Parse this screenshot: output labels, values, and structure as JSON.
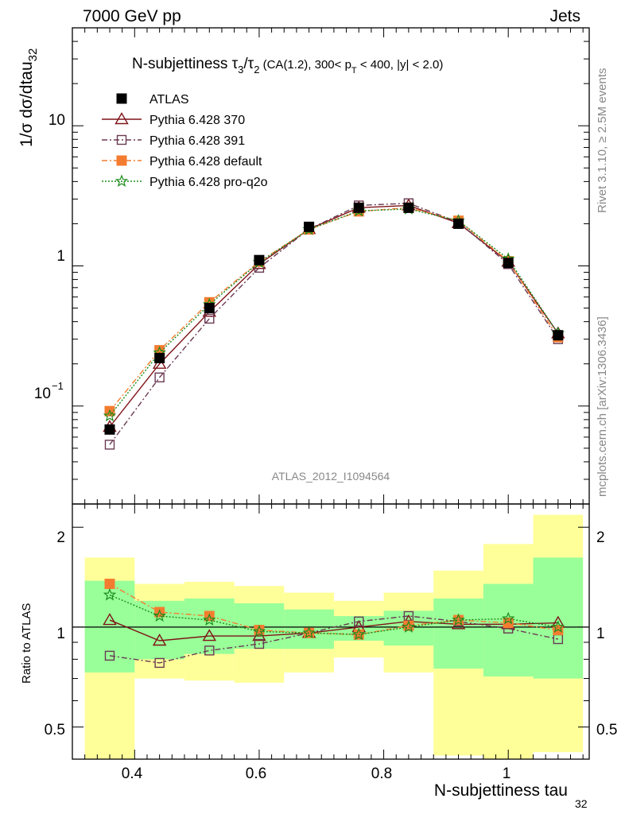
{
  "header": {
    "energy_label": "7000 GeV pp",
    "process_label": "Jets"
  },
  "side_text": {
    "rivet": "Rivet 3.1.10, ≥ 2.5M events",
    "source": "mcplots.cern.ch [arXiv:1306.3436]"
  },
  "analysis_id": "ATLAS_2012_I1094564",
  "title": {
    "main": "N-subjettiness τ",
    "sub3": "3",
    "slash": "/τ",
    "sub2": "2",
    "details_a": " (CA(1.2), 300< p",
    "subT": "T",
    "details_b": " < 400, |y| < 2.0)"
  },
  "axes": {
    "ylabel_main": "1/σ dσ/dtau",
    "ylabel_main_sub": "32",
    "ylabel_ratio": "Ratio to ATLAS",
    "xlabel": "N-subjettiness tau",
    "xlabel_sub": "32",
    "x_ticks": [
      "0.4",
      "0.6",
      "0.8",
      "1"
    ],
    "y_ticks_main": [
      "10",
      "1",
      "10"
    ],
    "y_ticks_main_sup": "−1",
    "y_ticks_ratio": [
      "2",
      "1",
      "0.5"
    ]
  },
  "legend": [
    {
      "label": "ATLAS",
      "color": "#000000",
      "marker": "filled-square",
      "line": "none"
    },
    {
      "label": "Pythia 6.428 370",
      "color": "#7f1318",
      "marker": "open-triangle",
      "line": "solid"
    },
    {
      "label": "Pythia 6.428 391",
      "color": "#6a3a52",
      "marker": "open-square",
      "line": "dashdot"
    },
    {
      "label": "Pythia 6.428 default",
      "color": "#f47c30",
      "marker": "filled-square",
      "line": "dashdot"
    },
    {
      "label": "Pythia 6.428 pro-q2o",
      "color": "#1d8c1d",
      "marker": "open-star",
      "line": "dotted"
    }
  ],
  "colors": {
    "band_inner": "#99ff99",
    "band_outer": "#ffff99"
  },
  "chart_data": [
    {
      "type": "line",
      "name": "main",
      "x": [
        0.36,
        0.44,
        0.52,
        0.6,
        0.68,
        0.76,
        0.84,
        0.92,
        1.0,
        1.08
      ],
      "x_edges": [
        0.32,
        0.4,
        0.48,
        0.56,
        0.64,
        0.72,
        0.8,
        0.88,
        0.96,
        1.04,
        1.12
      ],
      "xlim": [
        0.3,
        1.13
      ],
      "ylim": [
        0.02,
        50
      ],
      "log_y": true,
      "series": [
        {
          "name": "ATLAS",
          "values": [
            0.068,
            0.22,
            0.5,
            1.1,
            1.9,
            2.6,
            2.6,
            2.0,
            1.05,
            0.32
          ]
        },
        {
          "name": "Pythia 6.428 370",
          "values": [
            0.071,
            0.2,
            0.47,
            1.03,
            1.83,
            2.6,
            2.7,
            2.02,
            1.07,
            0.33
          ]
        },
        {
          "name": "Pythia 6.428 391",
          "values": [
            0.053,
            0.16,
            0.42,
            0.97,
            1.83,
            2.7,
            2.8,
            2.05,
            1.03,
            0.3
          ]
        },
        {
          "name": "Pythia 6.428 default",
          "values": [
            0.092,
            0.25,
            0.55,
            1.07,
            1.82,
            2.45,
            2.6,
            2.1,
            1.08,
            0.31
          ]
        },
        {
          "name": "Pythia 6.428 pro-q2o",
          "values": [
            0.085,
            0.24,
            0.53,
            1.06,
            1.82,
            2.47,
            2.55,
            2.1,
            1.12,
            0.33
          ]
        }
      ]
    },
    {
      "type": "line",
      "name": "ratio",
      "x": [
        0.36,
        0.44,
        0.52,
        0.6,
        0.68,
        0.76,
        0.84,
        0.92,
        1.0,
        1.08
      ],
      "xlim": [
        0.3,
        1.13
      ],
      "ylim": [
        0.4,
        2.35
      ],
      "log_y": true,
      "bands": {
        "inner": [
          [
            0.73,
            1.38
          ],
          [
            0.8,
            1.2
          ],
          [
            0.83,
            1.22
          ],
          [
            0.86,
            1.18
          ],
          [
            0.86,
            1.13
          ],
          [
            0.91,
            1.08
          ],
          [
            0.88,
            1.12
          ],
          [
            0.75,
            1.22
          ],
          [
            0.71,
            1.35
          ],
          [
            0.7,
            1.62
          ]
        ],
        "outer": [
          [
            0.3,
            1.62
          ],
          [
            0.7,
            1.35
          ],
          [
            0.69,
            1.37
          ],
          [
            0.68,
            1.33
          ],
          [
            0.73,
            1.27
          ],
          [
            0.81,
            1.2
          ],
          [
            0.73,
            1.27
          ],
          [
            0.41,
            1.48
          ],
          [
            0.4,
            1.78
          ],
          [
            0.42,
            2.18
          ]
        ]
      },
      "series": [
        {
          "name": "Pythia 6.428 370",
          "values": [
            1.05,
            0.91,
            0.94,
            0.94,
            0.96,
            1.0,
            1.04,
            1.02,
            1.02,
            1.03
          ]
        },
        {
          "name": "Pythia 6.428 391",
          "values": [
            0.82,
            0.78,
            0.85,
            0.89,
            0.96,
            1.04,
            1.08,
            1.04,
            0.99,
            0.92
          ]
        },
        {
          "name": "Pythia 6.428 default",
          "values": [
            1.35,
            1.11,
            1.08,
            0.98,
            0.96,
            0.95,
            1.01,
            1.05,
            1.03,
            0.98
          ]
        },
        {
          "name": "Pythia 6.428 pro-q2o",
          "values": [
            1.25,
            1.08,
            1.05,
            0.97,
            0.96,
            0.95,
            1.0,
            1.05,
            1.06,
            1.0
          ]
        }
      ]
    }
  ]
}
